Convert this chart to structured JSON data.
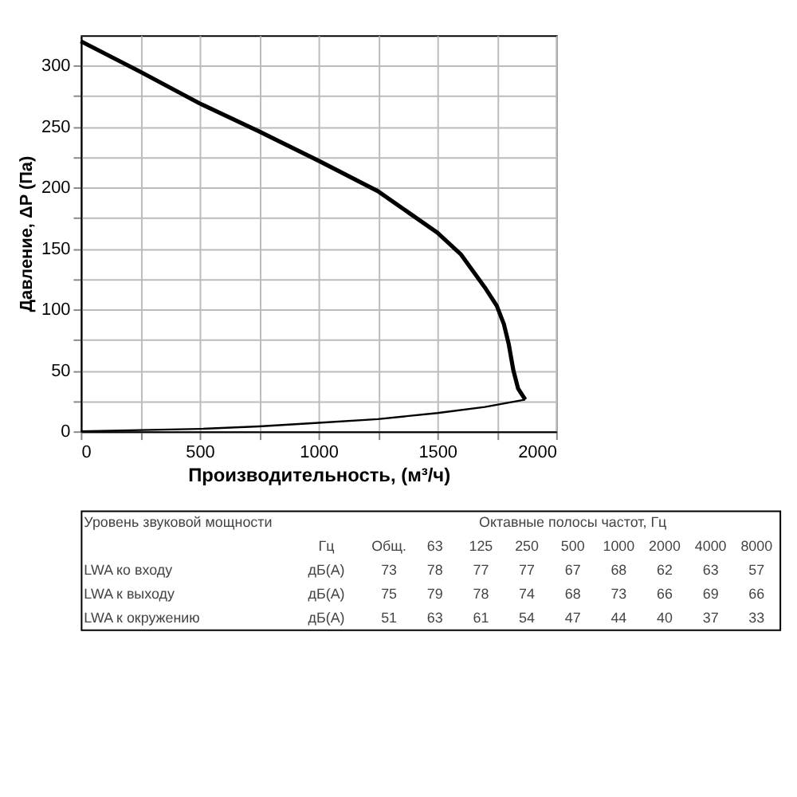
{
  "chart_data": {
    "type": "line",
    "xlabel": "Производительность, (м³/ч)",
    "ylabel": "Давление, ΔP (Па)",
    "series": [
      {
        "color": "#000000",
        "x": [
          0,
          250,
          500,
          750,
          1000,
          1250,
          1500,
          1600,
          1700,
          1750,
          1780,
          1800,
          1820,
          1840,
          1870
        ],
        "values": [
          320,
          295,
          269,
          246,
          222,
          197,
          163,
          145,
          118,
          103,
          88,
          72,
          50,
          35,
          26
        ]
      },
      {
        "color": "#000000",
        "x": [
          0,
          250,
          500,
          750,
          1000,
          1250,
          1500,
          1700,
          1870
        ],
        "values": [
          0,
          1,
          2,
          4,
          7,
          10,
          15,
          20,
          26
        ]
      }
    ],
    "xlim": [
      0,
      2000
    ],
    "ylim": [
      0,
      325
    ],
    "xticks": [
      0,
      {
        "value": 250,
        "label": null
      },
      500,
      {
        "value": 750,
        "label": null
      },
      1000,
      {
        "value": 1250,
        "label": null
      },
      1500,
      {
        "value": 1750,
        "label": null
      },
      2000
    ],
    "yticks": [
      0,
      {
        "value": 25,
        "label": null
      },
      50,
      {
        "value": 75,
        "label": null
      },
      100,
      {
        "value": 125,
        "label": null
      },
      150,
      {
        "value": 175,
        "label": null
      },
      200,
      {
        "value": 225,
        "label": null
      },
      250,
      {
        "value": 275,
        "label": null
      },
      300
    ],
    "grid": true,
    "marker": "none",
    "line_style": "solid",
    "annotations": [
      "Уровень звуковой мощности",
      "Октавные полосы частот, Гц",
      "Гц",
      "Общ.",
      "63",
      "125",
      "250",
      "500",
      "1000",
      "2000",
      "4000",
      "8000",
      "LWA ко входу",
      "дБ(А)",
      "73",
      "78",
      "77",
      "77",
      "67",
      "68",
      "62",
      "63",
      "57",
      "LWA к выходу",
      "дБ(А)",
      "75",
      "79",
      "78",
      "74",
      "68",
      "73",
      "66",
      "69",
      "66",
      "LWA к окружению",
      "дБ(А)",
      "51",
      "63",
      "61",
      "54",
      "47",
      "44",
      "40",
      "37",
      "33"
    ]
  }
}
